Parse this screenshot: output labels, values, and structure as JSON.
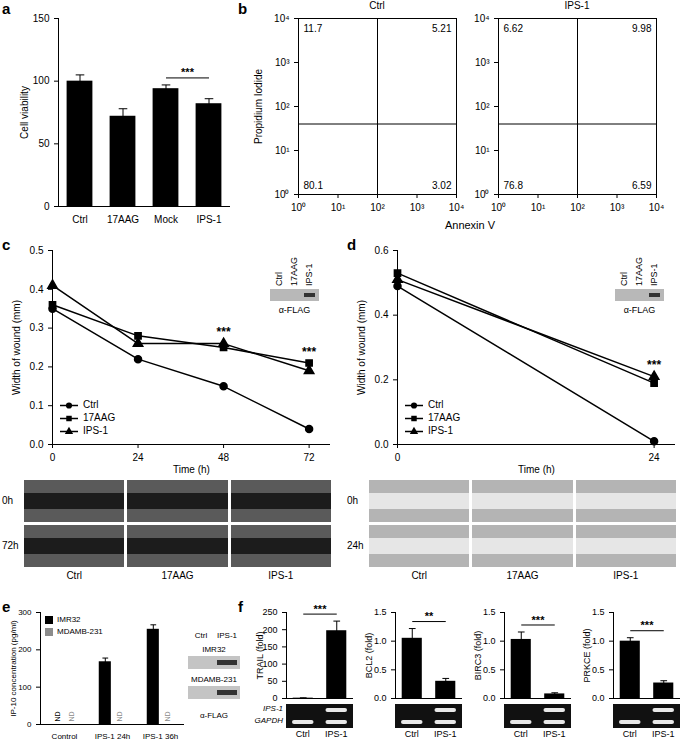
{
  "chart_data": [
    {
      "label": "a",
      "type": "bar",
      "categories": [
        "Ctrl",
        "17AAG",
        "Mock",
        "IPS-1"
      ],
      "values": [
        100,
        72,
        94,
        82
      ],
      "errors": [
        5,
        6,
        3,
        4
      ],
      "color": "#000000",
      "ylabel": "Cell viability",
      "ylim": [
        0,
        150
      ],
      "yticks": [
        0,
        50,
        100,
        150
      ],
      "significance": [
        {
          "pair": [
            "Mock",
            "IPS-1"
          ],
          "label": "***"
        }
      ]
    },
    {
      "label": "b",
      "type": "quadrant",
      "xlabel": "Annexin V",
      "ylabel": "Propidium Iodide",
      "log": true,
      "xlim": [
        1,
        10000
      ],
      "ylim": [
        1,
        10000
      ],
      "xticks": [
        {
          "value": 1,
          "label": "10⁰"
        },
        {
          "value": 10,
          "label": "10¹"
        },
        {
          "value": 100,
          "label": "10²"
        },
        {
          "value": 1000,
          "label": "10³"
        },
        {
          "value": 10000,
          "label": "10⁴"
        }
      ],
      "yticks": [
        {
          "value": 1,
          "label": "10⁰"
        },
        {
          "value": 10,
          "label": "10¹"
        },
        {
          "value": 100,
          "label": "10²"
        },
        {
          "value": 1000,
          "label": "10³"
        },
        {
          "value": 10000,
          "label": "10⁴"
        }
      ],
      "gate": {
        "x": 100,
        "y": 40
      },
      "plots": [
        {
          "title": "Ctrl",
          "quadrants": {
            "upper_left": 11.7,
            "upper_right": 5.21,
            "lower_left": 80.1,
            "lower_right": 3.02
          }
        },
        {
          "title": "IPS-1",
          "quadrants": {
            "upper_left": 6.62,
            "upper_right": 9.98,
            "lower_left": 76.8,
            "lower_right": 6.59
          }
        }
      ]
    },
    {
      "label": "c",
      "type": "line",
      "x": [
        0,
        24,
        48,
        72
      ],
      "xlim": [
        0,
        78
      ],
      "xticks": [
        0,
        24,
        48,
        72
      ],
      "xlabel": "Time (h)",
      "ylabel": "Width of wound (mm)",
      "ylim": [
        0,
        0.5
      ],
      "yticks": [
        {
          "value": 0,
          "label": "0.0"
        },
        0.1,
        0.2,
        0.3,
        0.4,
        0.5
      ],
      "legend": "bottom-left",
      "series": [
        {
          "name": "Ctrl",
          "color": "#000000",
          "marker": "circle",
          "values": [
            0.35,
            0.22,
            0.15,
            0.04
          ]
        },
        {
          "name": "17AAG",
          "color": "#000000",
          "marker": "square",
          "values": [
            0.36,
            0.28,
            0.25,
            0.21
          ]
        },
        {
          "name": "IPS-1",
          "color": "#000000",
          "marker": "triangle",
          "values": [
            0.41,
            0.26,
            0.26,
            0.19
          ]
        }
      ],
      "annotations": [
        {
          "x": 48,
          "label": "***"
        },
        {
          "x": 72,
          "label": "***"
        }
      ],
      "blot": {
        "lanes": [
          "Ctrl",
          "17AAG",
          "IPS-1"
        ],
        "label": "α-FLAG"
      },
      "micrographs": {
        "rows": [
          "0h",
          "72h"
        ],
        "columns": [
          "Ctrl",
          "17AAG",
          "IPS-1"
        ]
      }
    },
    {
      "label": "d",
      "type": "line",
      "x": [
        0,
        24
      ],
      "xlim": [
        0,
        26
      ],
      "xticks": [
        0,
        24
      ],
      "xlabel": "Time (h)",
      "ylabel": "Width of wound (mm)",
      "ylim": [
        0,
        0.6
      ],
      "yticks": [
        {
          "value": 0,
          "label": "0.0"
        },
        0.2,
        0.4,
        0.6
      ],
      "legend": "bottom-left",
      "series": [
        {
          "name": "Ctrl",
          "color": "#000000",
          "marker": "circle",
          "values": [
            0.49,
            0.01
          ]
        },
        {
          "name": "17AAG",
          "color": "#000000",
          "marker": "square",
          "values": [
            0.53,
            0.19
          ]
        },
        {
          "name": "IPS-1",
          "color": "#000000",
          "marker": "triangle",
          "values": [
            0.51,
            0.21
          ]
        }
      ],
      "annotations": [
        {
          "x": 24,
          "label": "***"
        }
      ],
      "blot": {
        "lanes": [
          "Ctrl",
          "17AAG",
          "IPS-1"
        ],
        "label": "α-FLAG"
      },
      "micrographs": {
        "rows": [
          "0h",
          "24h"
        ],
        "columns": [
          "Ctrl",
          "17AAG",
          "IPS-1"
        ]
      }
    },
    {
      "label": "e",
      "type": "bar",
      "categories": [
        "Control",
        "IPS-1 24h",
        "IPS-1 36h"
      ],
      "ylabel": "IP-10 concentration (pg/ml)",
      "ylim": [
        0,
        300
      ],
      "yticks": [
        0,
        100,
        200,
        300
      ],
      "legend": "top-left",
      "series": [
        {
          "name": "IMR32",
          "color": "#000000",
          "values": [
            null,
            168,
            255
          ],
          "errors": [
            null,
            10,
            12
          ],
          "value_labels": [
            "ND",
            null,
            null
          ]
        },
        {
          "name": "MDAMB-231",
          "color": "#8c8c8c",
          "values": [
            null,
            null,
            null
          ],
          "errors": [
            null,
            null,
            null
          ],
          "value_labels": [
            "ND",
            "ND",
            "ND"
          ]
        }
      ],
      "blot": {
        "lanes": [
          "Ctrl",
          "IPS-1"
        ],
        "rows": [
          "IMR32",
          "MDAMB-231"
        ],
        "label": "α-FLAG"
      }
    },
    {
      "label": "f",
      "type": "bar_group",
      "gel_rows": [
        "IPS-1",
        "GAPDH"
      ],
      "charts": [
        {
          "type": "bar",
          "categories": [
            "Ctrl",
            "IPS-1"
          ],
          "values": [
            1,
            197
          ],
          "errors": [
            1,
            28
          ],
          "color": "#000000",
          "ylabel": "TRAIL (fold)",
          "ylim": [
            0,
            250
          ],
          "yticks": [
            0,
            50,
            100,
            150,
            200,
            250
          ],
          "significance": [
            {
              "pair": [
                "Ctrl",
                "IPS-1"
              ],
              "label": "***"
            }
          ]
        },
        {
          "type": "bar",
          "categories": [
            "Ctrl",
            "IPS-1"
          ],
          "values": [
            1.05,
            0.3
          ],
          "errors": [
            0.17,
            0.05
          ],
          "color": "#000000",
          "ylabel": "BCL2 (fold)",
          "ylim": [
            0,
            1.5
          ],
          "yticks": [
            {
              "value": 0,
              "label": "0.0"
            },
            0.5,
            {
              "value": 1,
              "label": "1.0"
            },
            1.5
          ],
          "significance": [
            {
              "pair": [
                "Ctrl",
                "IPS-1"
              ],
              "label": "**"
            }
          ]
        },
        {
          "type": "bar",
          "categories": [
            "Ctrl",
            "IPS-1"
          ],
          "values": [
            1.03,
            0.08
          ],
          "errors": [
            0.13,
            0.02
          ],
          "color": "#000000",
          "ylabel": "BIRC3 (fold)",
          "ylim": [
            0,
            1.5
          ],
          "yticks": [
            {
              "value": 0,
              "label": "0.0"
            },
            0.5,
            {
              "value": 1,
              "label": "1.0"
            },
            1.5
          ],
          "significance": [
            {
              "pair": [
                "Ctrl",
                "IPS-1"
              ],
              "label": "***"
            }
          ]
        },
        {
          "type": "bar",
          "categories": [
            "Ctrl",
            "IPS-1"
          ],
          "values": [
            1.0,
            0.27
          ],
          "errors": [
            0.06,
            0.04
          ],
          "color": "#000000",
          "ylabel": "PRKCE (fold)",
          "ylim": [
            0,
            1.5
          ],
          "yticks": [
            {
              "value": 0,
              "label": "0.0"
            },
            0.5,
            {
              "value": 1,
              "label": "1.0"
            },
            1.5
          ],
          "significance": [
            {
              "pair": [
                "Ctrl",
                "IPS-1"
              ],
              "label": "***"
            }
          ]
        }
      ]
    }
  ]
}
